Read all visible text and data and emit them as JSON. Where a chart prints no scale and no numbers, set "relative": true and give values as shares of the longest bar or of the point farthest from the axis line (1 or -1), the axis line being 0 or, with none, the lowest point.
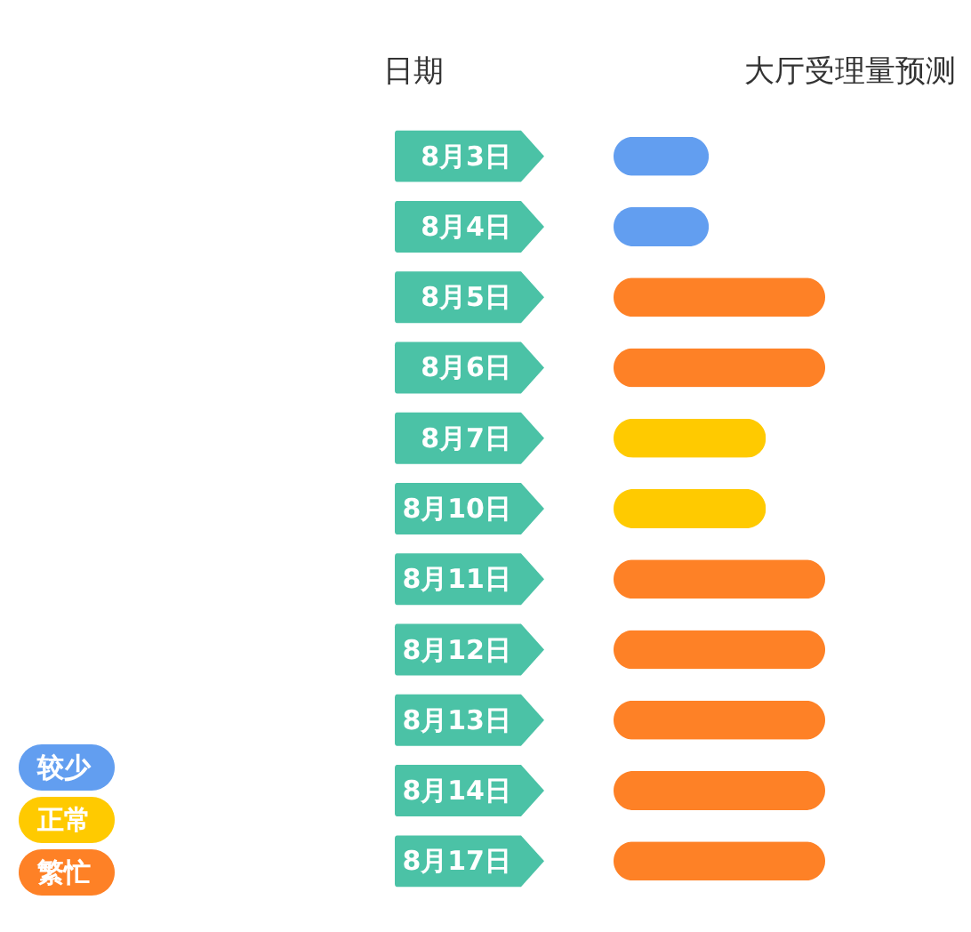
{
  "chart_data": {
    "type": "bar",
    "orientation": "horizontal",
    "relative": true,
    "stacked": true,
    "xlabel": "大厅受理量预测",
    "ylabel": "日期",
    "categories": [
      "8月3日",
      "8月4日",
      "8月5日",
      "8月6日",
      "8月7日",
      "8月10日",
      "8月11日",
      "8月12日",
      "8月13日",
      "8月14日",
      "8月17日"
    ],
    "series": [
      {
        "name": "较少",
        "color": "#629ef0",
        "values": [
          0.45,
          0.45,
          null,
          null,
          null,
          null,
          null,
          null,
          null,
          null,
          null
        ]
      },
      {
        "name": "正常",
        "color": "#ffca00",
        "values": [
          null,
          null,
          null,
          null,
          0.72,
          0.72,
          null,
          null,
          null,
          null,
          null
        ]
      },
      {
        "name": "繁忙",
        "color": "#fe8126",
        "values": [
          null,
          null,
          1,
          1,
          null,
          null,
          1,
          1,
          1,
          1,
          1
        ]
      }
    ],
    "legend": "bottom left",
    "grid": false
  }
}
